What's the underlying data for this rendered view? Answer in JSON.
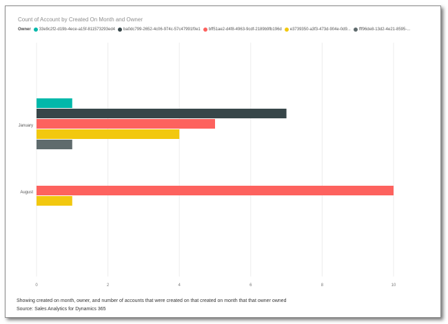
{
  "chart_data": {
    "type": "bar",
    "orientation": "horizontal",
    "title": "Count of Account by Created On Month and Owner",
    "legend_title": "Owner",
    "legend_position": "top-left",
    "categories": [
      "January",
      "August"
    ],
    "series": [
      {
        "name": "33e9c2f2-d19b-4ece-a15f-811573293ed4",
        "color": "#01B8AA",
        "values": [
          1,
          null
        ]
      },
      {
        "name": "ba0dc799-2652-4c06-974c-57c47991f0e1",
        "color": "#374649",
        "values": [
          7,
          null
        ]
      },
      {
        "name": "bff51ae2-d4f8-4963-9cdf-2189b9fb196d",
        "color": "#FD625E",
        "values": [
          5,
          10
        ]
      },
      {
        "name": "e3739350-a3f3-473d-904e-0d9...",
        "color": "#F2C80F",
        "values": [
          4,
          1
        ]
      },
      {
        "name": "fff96de8-13d2-4e21-8595-...",
        "color": "#5F6B6D",
        "values": [
          1,
          null
        ]
      }
    ],
    "xticks": [
      "0",
      "2",
      "4",
      "6",
      "8",
      "10"
    ],
    "xlim": [
      0,
      10
    ],
    "grid": true,
    "xlabel": "",
    "ylabel": ""
  },
  "description": "Showing created on month, owner, and number of accounts that were created on that created on month that that owner owned",
  "source": "Source: Sales Analytics for Dynamics 365"
}
